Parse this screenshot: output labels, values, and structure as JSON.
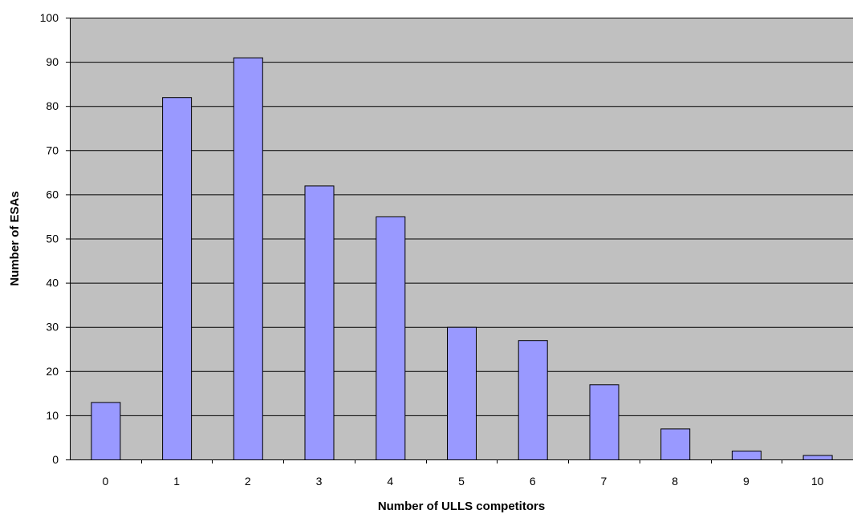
{
  "chart_data": {
    "type": "bar",
    "title": "",
    "xlabel": "Number of ULLS competitors",
    "ylabel": "Number of ESAs",
    "categories": [
      "0",
      "1",
      "2",
      "3",
      "4",
      "5",
      "6",
      "7",
      "8",
      "9",
      "10"
    ],
    "values": [
      13,
      82,
      91,
      62,
      55,
      30,
      27,
      17,
      7,
      2,
      1
    ],
    "ylim": [
      0,
      100
    ],
    "yticks": [
      0,
      10,
      20,
      30,
      40,
      50,
      60,
      70,
      80,
      90,
      100
    ],
    "grid": true,
    "legend": "none",
    "colors": {
      "plot_background": "#c0c0c0",
      "bar_fill": "#9999ff",
      "bar_stroke": "#000000",
      "gridline": "#000000"
    }
  }
}
